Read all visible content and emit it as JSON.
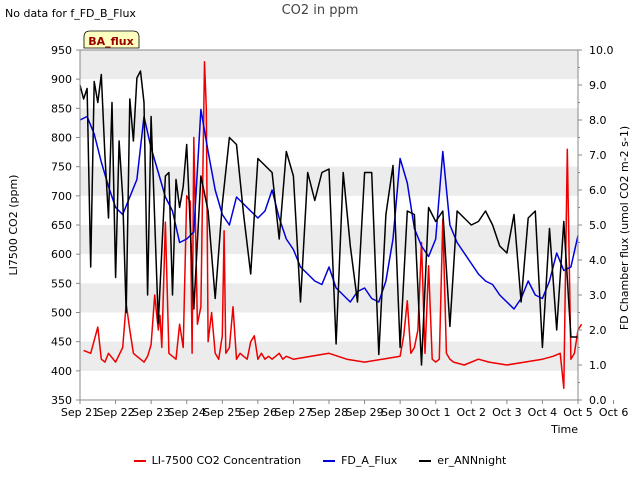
{
  "header": {
    "no_data_text": "No data for f_FD_B_Flux",
    "title": "CO2 in ppm"
  },
  "badge": {
    "text": "BA_flux",
    "bg": "#ffffc0",
    "color": "#990000"
  },
  "colors": {
    "red": "#ee0000",
    "blue": "#0000dd",
    "black": "#000000",
    "band": "#ececec"
  },
  "chart_data": {
    "type": "line",
    "title": "CO2 in ppm",
    "xlabel": "Time",
    "ylabel": "LI7500 CO2 (ppm)",
    "y2label": "FD Chamber flux (umol CO2 m-2 s-1)",
    "xlim": [
      0,
      14
    ],
    "ylim": [
      350,
      950
    ],
    "y2lim": [
      0,
      10
    ],
    "x_ticks": [
      "Sep 21",
      "Sep 22",
      "Sep 23",
      "Sep 24",
      "Sep 25",
      "Sep 26",
      "Sep 27",
      "Sep 28",
      "Sep 29",
      "Sep 30",
      "Oct 1",
      "Oct 2",
      "Oct 3",
      "Oct 4",
      "Oct 5",
      "Oct 6"
    ],
    "y_ticks": [
      350,
      400,
      450,
      500,
      550,
      600,
      650,
      700,
      750,
      800,
      850,
      900,
      950
    ],
    "y2_ticks": [
      "0.0",
      "1.0",
      "2.0",
      "3.0",
      "4.0",
      "5.0",
      "6.0",
      "7.0",
      "8.0",
      "9.0",
      "10.0"
    ],
    "grid": "alternating horizontal bands",
    "legend": "bottom-center",
    "series": [
      {
        "name": "LI-7500 CO2 Concentration",
        "axis": "left",
        "color": "#ee0000",
        "x": [
          0.1,
          0.3,
          0.5,
          0.6,
          0.7,
          0.8,
          1.0,
          1.2,
          1.3,
          1.4,
          1.5,
          1.6,
          1.7,
          1.8,
          1.9,
          2.0,
          2.1,
          2.2,
          2.25,
          2.3,
          2.4,
          2.5,
          2.6,
          2.7,
          2.8,
          2.9,
          3.0,
          3.1,
          3.15,
          3.2,
          3.3,
          3.4,
          3.5,
          3.55,
          3.6,
          3.7,
          3.8,
          3.9,
          4.0,
          4.05,
          4.1,
          4.2,
          4.3,
          4.4,
          4.5,
          4.6,
          4.7,
          4.8,
          4.9,
          5.0,
          5.1,
          5.2,
          5.3,
          5.4,
          5.5,
          5.6,
          5.7,
          5.8,
          6.0,
          6.5,
          7.0,
          7.5,
          8.0,
          8.5,
          9.0,
          9.1,
          9.2,
          9.3,
          9.4,
          9.5,
          9.6,
          9.7,
          9.8,
          9.9,
          10.0,
          10.1,
          10.2,
          10.3,
          10.4,
          10.5,
          10.8,
          11.2,
          11.5,
          12.0,
          12.5,
          13.0,
          13.3,
          13.5,
          13.6,
          13.7,
          13.8,
          13.9,
          14.0,
          14.1
        ],
        "values": [
          435,
          430,
          475,
          420,
          415,
          430,
          415,
          440,
          515,
          470,
          430,
          425,
          420,
          415,
          425,
          445,
          530,
          470,
          495,
          440,
          655,
          430,
          425,
          420,
          480,
          440,
          700,
          690,
          430,
          800,
          480,
          510,
          930,
          850,
          450,
          500,
          430,
          420,
          460,
          640,
          430,
          440,
          510,
          420,
          430,
          425,
          420,
          450,
          460,
          420,
          430,
          420,
          425,
          420,
          425,
          430,
          420,
          425,
          420,
          425,
          430,
          420,
          415,
          420,
          425,
          460,
          520,
          430,
          440,
          470,
          620,
          430,
          580,
          420,
          415,
          420,
          660,
          430,
          420,
          415,
          410,
          420,
          415,
          410,
          415,
          420,
          425,
          430,
          370,
          780,
          420,
          430,
          470,
          480
        ]
      },
      {
        "name": "FD_A_Flux",
        "axis": "right",
        "color": "#0000dd",
        "x": [
          0.0,
          0.2,
          0.4,
          0.6,
          0.8,
          1.0,
          1.2,
          1.4,
          1.6,
          1.8,
          2.0,
          2.2,
          2.4,
          2.6,
          2.8,
          3.0,
          3.2,
          3.4,
          3.6,
          3.8,
          4.0,
          4.2,
          4.4,
          4.6,
          4.8,
          5.0,
          5.2,
          5.4,
          5.6,
          5.8,
          6.0,
          6.2,
          6.4,
          6.6,
          6.8,
          7.0,
          7.2,
          7.4,
          7.6,
          7.8,
          8.0,
          8.2,
          8.4,
          8.6,
          8.8,
          9.0,
          9.2,
          9.4,
          9.6,
          9.8,
          10.0,
          10.2,
          10.4,
          10.6,
          10.8,
          11.0,
          11.2,
          11.4,
          11.6,
          11.8,
          12.0,
          12.2,
          12.4,
          12.6,
          12.8,
          13.0,
          13.2,
          13.4,
          13.6,
          13.8,
          14.0
        ],
        "values": [
          8.0,
          8.1,
          7.6,
          6.8,
          6.1,
          5.5,
          5.3,
          5.8,
          6.3,
          8.1,
          7.2,
          6.5,
          5.8,
          5.4,
          4.5,
          4.6,
          4.8,
          8.3,
          7.1,
          6.0,
          5.3,
          5.0,
          5.8,
          5.6,
          5.4,
          5.2,
          5.4,
          6.0,
          5.2,
          4.6,
          4.3,
          3.8,
          3.6,
          3.4,
          3.3,
          3.8,
          3.2,
          3.0,
          2.8,
          3.1,
          3.2,
          2.9,
          2.8,
          3.4,
          4.6,
          6.9,
          6.2,
          4.9,
          4.4,
          4.1,
          4.6,
          7.1,
          5.0,
          4.5,
          4.2,
          3.9,
          3.6,
          3.4,
          3.3,
          3.0,
          2.8,
          2.6,
          2.9,
          3.4,
          3.0,
          2.9,
          3.4,
          4.2,
          3.7,
          3.8,
          4.7
        ]
      },
      {
        "name": "er_ANNnight",
        "axis": "right",
        "color": "#000000",
        "x": [
          0.0,
          0.1,
          0.2,
          0.3,
          0.4,
          0.5,
          0.6,
          0.7,
          0.8,
          0.9,
          1.0,
          1.1,
          1.2,
          1.3,
          1.4,
          1.5,
          1.6,
          1.7,
          1.8,
          1.9,
          2.0,
          2.2,
          2.4,
          2.5,
          2.6,
          2.7,
          2.8,
          2.9,
          3.0,
          3.2,
          3.4,
          3.6,
          3.8,
          4.0,
          4.2,
          4.4,
          4.6,
          4.8,
          5.0,
          5.2,
          5.4,
          5.6,
          5.8,
          6.0,
          6.2,
          6.4,
          6.6,
          6.8,
          7.0,
          7.2,
          7.4,
          7.6,
          7.8,
          8.0,
          8.2,
          8.4,
          8.6,
          8.8,
          9.0,
          9.2,
          9.4,
          9.6,
          9.8,
          10.0,
          10.2,
          10.4,
          10.6,
          10.8,
          11.0,
          11.2,
          11.4,
          11.6,
          11.8,
          12.0,
          12.2,
          12.4,
          12.6,
          12.8,
          13.0,
          13.2,
          13.4,
          13.6,
          13.8,
          14.0
        ],
        "values": [
          9.0,
          8.6,
          8.9,
          3.8,
          9.1,
          8.5,
          9.3,
          7.0,
          5.2,
          8.5,
          3.5,
          7.4,
          5.8,
          2.5,
          8.6,
          7.4,
          9.2,
          9.4,
          8.5,
          3.0,
          8.1,
          2.2,
          6.4,
          6.5,
          3.0,
          6.3,
          5.5,
          6.1,
          7.3,
          2.6,
          6.4,
          5.4,
          2.9,
          5.6,
          7.5,
          7.3,
          5.3,
          3.6,
          6.9,
          6.7,
          6.5,
          4.6,
          7.1,
          6.4,
          2.8,
          6.5,
          5.7,
          6.5,
          6.6,
          1.6,
          6.5,
          4.4,
          2.8,
          6.5,
          6.5,
          1.3,
          5.3,
          6.7,
          1.5,
          5.4,
          5.3,
          1.0,
          5.5,
          5.1,
          5.4,
          2.1,
          5.4,
          5.2,
          5.0,
          5.1,
          5.4,
          5.0,
          4.4,
          4.2,
          5.3,
          2.8,
          5.2,
          5.4,
          1.5,
          4.9,
          2.0,
          5.1,
          1.8,
          1.8
        ]
      }
    ]
  }
}
